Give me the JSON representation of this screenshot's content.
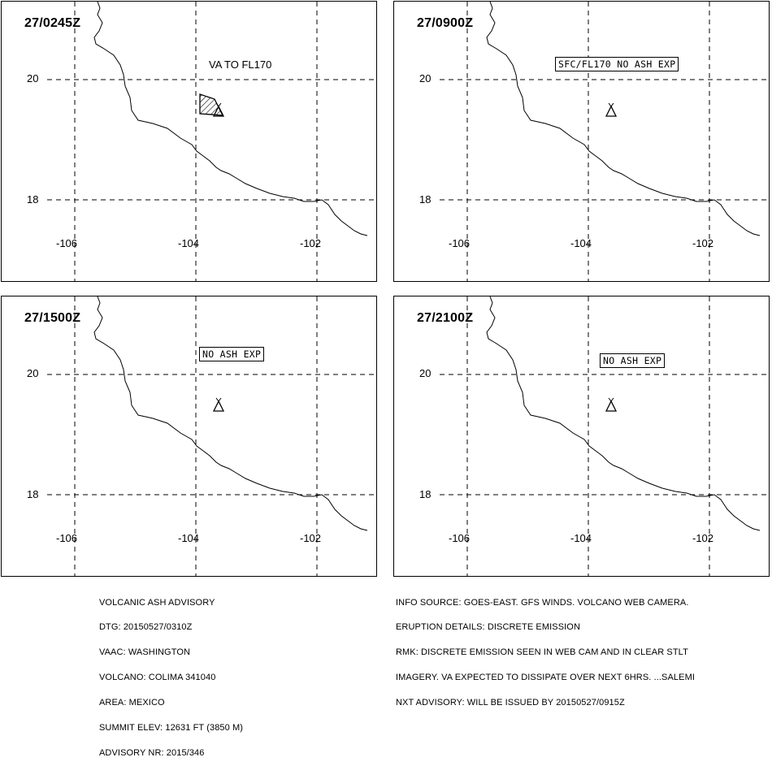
{
  "panels": [
    {
      "time": "27/0245Z",
      "label": "VA TO FL170",
      "label_boxed": false,
      "ash_area": true
    },
    {
      "time": "27/0900Z",
      "label": "SFC/FL170 NO ASH EXP",
      "label_boxed": true,
      "ash_area": false
    },
    {
      "time": "27/1500Z",
      "label": "NO ASH EXP",
      "label_boxed": true,
      "ash_area": false
    },
    {
      "time": "27/2100Z",
      "label": "NO ASH EXP",
      "label_boxed": true,
      "ash_area": false
    }
  ],
  "axes": {
    "lat_labels": [
      "20",
      "18"
    ],
    "lon_labels": [
      "-106",
      "-104",
      "-102"
    ]
  },
  "volcano_icon": "volcano-triangle-icon",
  "advisory": {
    "title": "VOLCANIC ASH ADVISORY",
    "dtg": "DTG: 20150527/0310Z",
    "vaac": "VAAC: WASHINGTON",
    "volcano": "VOLCANO: COLIMA 341040",
    "area": "AREA: MEXICO",
    "summit": "SUMMIT ELEV: 12631 FT (3850 M)",
    "advisory_nr": "ADVISORY NR: 2015/346"
  },
  "details": {
    "info_source": "INFO SOURCE: GOES-EAST. GFS WINDS. VOLCANO WEB CAMERA.",
    "eruption": "ERUPTION DETAILS: DISCRETE EMISSION",
    "rmk1": "RMK: DISCRETE EMISSION SEEN IN WEB CAM AND IN CLEAR STLT",
    "rmk2": "IMAGERY. VA EXPECTED TO DISSIPATE OVER NEXT 6HRS. ...SALEMI",
    "nxt": "NXT ADVISORY: WILL BE ISSUED BY 20150527/0915Z"
  }
}
